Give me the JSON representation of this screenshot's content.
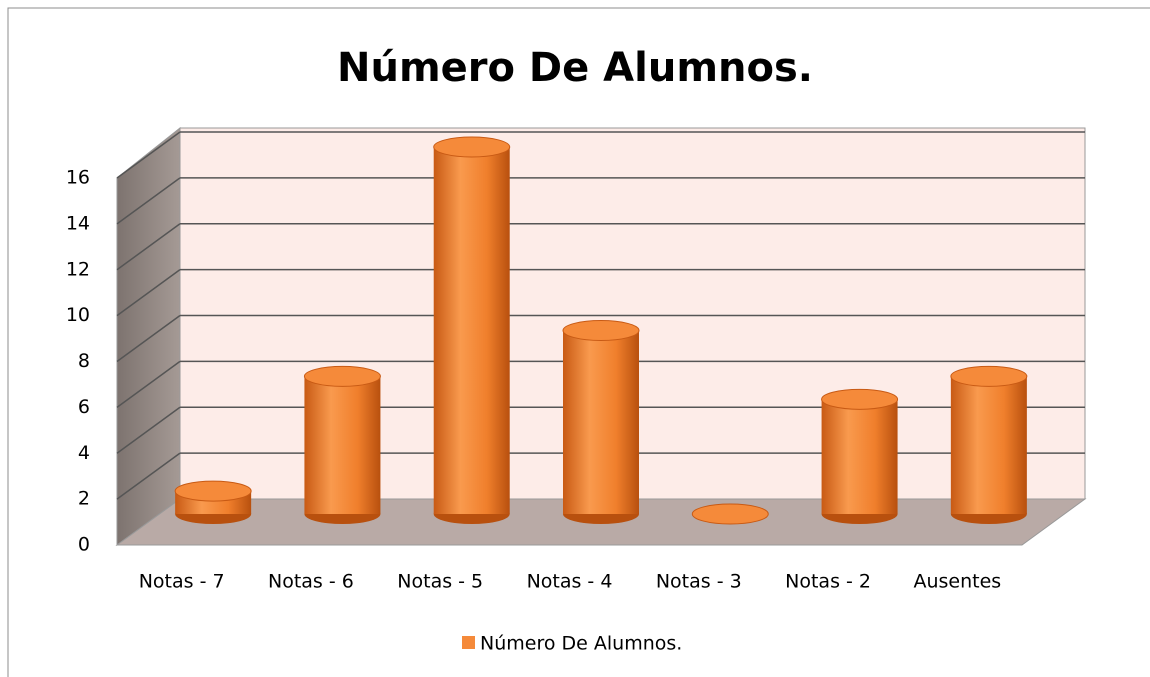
{
  "chart_data": {
    "type": "bar3d",
    "title": "Número De Alumnos.",
    "categories": [
      "Notas - 7",
      "Notas - 6",
      "Notas - 5",
      "Notas - 4",
      "Notas - 3",
      "Notas - 2",
      "Ausentes"
    ],
    "series": [
      {
        "name": "Número De Alumnos.",
        "color": "#f58a3a",
        "values": [
          1,
          6,
          16,
          8,
          0,
          5,
          6
        ]
      }
    ],
    "ylim": [
      0,
      16
    ],
    "yticks": [
      0,
      2,
      4,
      6,
      8,
      10,
      12,
      14,
      16
    ],
    "grid": true,
    "legend": "bottom"
  }
}
